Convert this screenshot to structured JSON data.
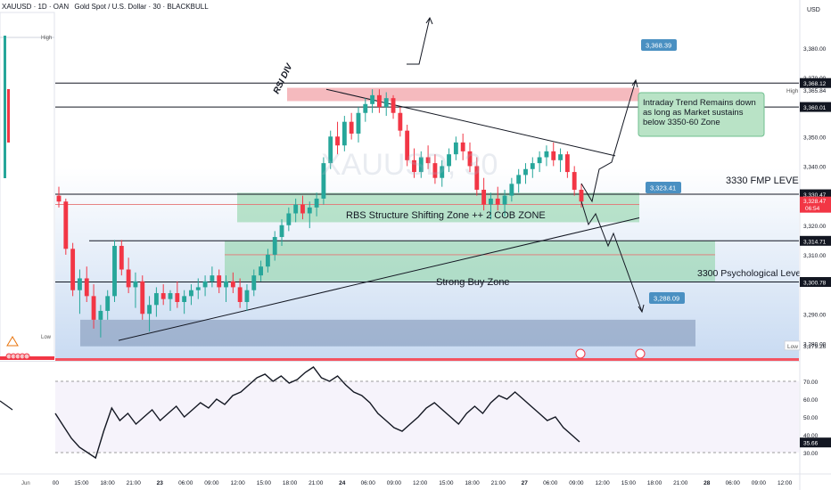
{
  "header": {
    "symbol": "XAUUSD · 1D · OAN",
    "title": "Gold Spot / U.S. Dollar · 30 · BLACKBULL",
    "currency": "USD"
  },
  "left_panel": {
    "high_label": "High",
    "low_label": "Low",
    "bottom_label": "Jun"
  },
  "annotations": {
    "rsi_div": "RSI DIV",
    "rbs_zone": "RBS Structure Shifting Zone ++ 2 COB ZONE",
    "strong_buy": "Strong Buy Zone",
    "fmp_level": "3330 FMP LEVEL",
    "psych_level": "3300 Psychological Level",
    "trend_note": "Intraday Trend Remains down as long as Market sustains below 3350-60 Zone",
    "watermark": "XAUUSD, 30"
  },
  "price_callouts": [
    {
      "label": "3,368.39",
      "value": 3368.39
    },
    {
      "label": "3,323.41",
      "value": 3323.41
    },
    {
      "label": "3,288.09",
      "value": 3288.09
    }
  ],
  "horizontal_levels": [
    {
      "label": "3,368.12",
      "value": 3368.12
    },
    {
      "label": "3,360.01",
      "value": 3360.01
    },
    {
      "label": "3,330.47",
      "value": 3330.47
    },
    {
      "label": "3,314.71",
      "value": 3314.71
    },
    {
      "label": "3,300.78",
      "value": 3300.78
    }
  ],
  "axis_badges": [
    {
      "label": "3,368.12",
      "value": 3368.12,
      "bg": "#131722"
    },
    {
      "label": "3,360.01",
      "value": 3360.01,
      "bg": "#131722"
    },
    {
      "label": "3,330.47",
      "value": 3330.47,
      "bg": "#131722"
    },
    {
      "label": "3,314.71",
      "value": 3314.71,
      "bg": "#131722"
    },
    {
      "label": "3,300.78",
      "value": 3300.78,
      "bg": "#131722"
    }
  ],
  "current_price": {
    "label": "3,328.47",
    "value": 3328.47,
    "countdown": "06:54",
    "color": "#f23645"
  },
  "high_marker": {
    "label": "3,365.84",
    "value": 3365.84,
    "tag": "High"
  },
  "low_marker": {
    "label": "3,279.26",
    "value": 3279.26,
    "tag": "Low"
  },
  "rsi_badge": {
    "label": "35.66",
    "value": 35.66
  },
  "colors": {
    "bull": "#26a69a",
    "bear": "#f23645",
    "accent": "#4a90c2",
    "zone_green": "#8fd3a9",
    "zone_red": "#f2a3a8",
    "zone_blue": "#7a8fb3"
  },
  "chart_data": [
    {
      "type": "candlestick",
      "title": "Gold Spot / U.S. Dollar · 30 · BLACKBULL",
      "ylim": [
        3275,
        3392
      ],
      "y_ticks": [
        3380,
        3370,
        3360,
        3350,
        3340,
        3330,
        3320,
        3310,
        3290,
        3280
      ],
      "y_tick_labels": [
        "3,380.00",
        "3,370.00",
        "3,360.00",
        "3,350.00",
        "3,340.00",
        "3,330.00",
        "3,320.00",
        "3,310.00",
        "3,290.00",
        "3,280.00"
      ],
      "x_ticks": [
        "00",
        "15:00",
        "18:00",
        "21:00",
        "23",
        "06:00",
        "09:00",
        "12:00",
        "15:00",
        "18:00",
        "21:00",
        "24",
        "06:00",
        "09:00",
        "12:00",
        "15:00",
        "18:00",
        "21:00",
        "27",
        "06:00",
        "09:00",
        "12:00",
        "15:00",
        "18:00",
        "21:00",
        "28",
        "06:00",
        "09:00",
        "12:00"
      ],
      "candles": [
        [
          3330,
          3333,
          3326,
          3328
        ],
        [
          3328,
          3329,
          3310,
          3312
        ],
        [
          3312,
          3314,
          3296,
          3298
        ],
        [
          3298,
          3305,
          3290,
          3302
        ],
        [
          3302,
          3306,
          3294,
          3296
        ],
        [
          3296,
          3300,
          3285,
          3288
        ],
        [
          3288,
          3293,
          3282,
          3291
        ],
        [
          3291,
          3298,
          3288,
          3296
        ],
        [
          3296,
          3315,
          3294,
          3313
        ],
        [
          3313,
          3315,
          3303,
          3305
        ],
        [
          3305,
          3309,
          3297,
          3299
        ],
        [
          3299,
          3304,
          3292,
          3301
        ],
        [
          3301,
          3303,
          3288,
          3290
        ],
        [
          3290,
          3296,
          3284,
          3293
        ],
        [
          3293,
          3299,
          3289,
          3297
        ],
        [
          3297,
          3300,
          3293,
          3295
        ],
        [
          3295,
          3298,
          3291,
          3297
        ],
        [
          3297,
          3301,
          3292,
          3294
        ],
        [
          3294,
          3298,
          3290,
          3296
        ],
        [
          3296,
          3300,
          3293,
          3298
        ],
        [
          3298,
          3302,
          3295,
          3299
        ],
        [
          3299,
          3303,
          3296,
          3301
        ],
        [
          3301,
          3306,
          3299,
          3303
        ],
        [
          3303,
          3305,
          3297,
          3299
        ],
        [
          3299,
          3303,
          3294,
          3301
        ],
        [
          3301,
          3304,
          3297,
          3299
        ],
        [
          3299,
          3302,
          3292,
          3294
        ],
        [
          3294,
          3300,
          3291,
          3298
        ],
        [
          3298,
          3305,
          3296,
          3303
        ],
        [
          3303,
          3308,
          3301,
          3306
        ],
        [
          3306,
          3312,
          3304,
          3310
        ],
        [
          3310,
          3318,
          3308,
          3316
        ],
        [
          3316,
          3322,
          3313,
          3320
        ],
        [
          3320,
          3326,
          3318,
          3324
        ],
        [
          3324,
          3329,
          3321,
          3327
        ],
        [
          3327,
          3330,
          3322,
          3324
        ],
        [
          3324,
          3328,
          3319,
          3326
        ],
        [
          3326,
          3331,
          3323,
          3329
        ],
        [
          3329,
          3343,
          3327,
          3341
        ],
        [
          3341,
          3352,
          3339,
          3350
        ],
        [
          3350,
          3355,
          3344,
          3347
        ],
        [
          3347,
          3357,
          3345,
          3355
        ],
        [
          3355,
          3358,
          3349,
          3351
        ],
        [
          3351,
          3360,
          3348,
          3358
        ],
        [
          3358,
          3363,
          3355,
          3361
        ],
        [
          3361,
          3366,
          3358,
          3364
        ],
        [
          3364,
          3366,
          3358,
          3360
        ],
        [
          3360,
          3365,
          3357,
          3363
        ],
        [
          3363,
          3364,
          3356,
          3358
        ],
        [
          3358,
          3360,
          3350,
          3352
        ],
        [
          3352,
          3354,
          3340,
          3342
        ],
        [
          3342,
          3346,
          3336,
          3338
        ],
        [
          3338,
          3345,
          3336,
          3343
        ],
        [
          3343,
          3347,
          3339,
          3341
        ],
        [
          3341,
          3344,
          3334,
          3336
        ],
        [
          3336,
          3342,
          3333,
          3340
        ],
        [
          3340,
          3346,
          3338,
          3344
        ],
        [
          3344,
          3350,
          3342,
          3348
        ],
        [
          3348,
          3351,
          3342,
          3345
        ],
        [
          3345,
          3348,
          3338,
          3340
        ],
        [
          3340,
          3343,
          3330,
          3332
        ],
        [
          3332,
          3336,
          3325,
          3327
        ],
        [
          3327,
          3331,
          3322,
          3329
        ],
        [
          3329,
          3333,
          3325,
          3327
        ],
        [
          3327,
          3332,
          3323,
          3330
        ],
        [
          3330,
          3336,
          3328,
          3334
        ],
        [
          3334,
          3339,
          3331,
          3337
        ],
        [
          3337,
          3341,
          3334,
          3339
        ],
        [
          3339,
          3343,
          3336,
          3341
        ],
        [
          3341,
          3345,
          3338,
          3343
        ],
        [
          3343,
          3347,
          3340,
          3345
        ],
        [
          3345,
          3348,
          3340,
          3342
        ],
        [
          3342,
          3346,
          3338,
          3344
        ],
        [
          3344,
          3345,
          3336,
          3338
        ],
        [
          3338,
          3340,
          3330,
          3332
        ],
        [
          3332,
          3334,
          3326,
          3328
        ]
      ],
      "overlays": {
        "rbs_zone": [
          3321,
          3331
        ],
        "strong_buy_zone": [
          3301,
          3314.7
        ],
        "supply_zone": [
          3362,
          3366.5
        ],
        "low_zone": [
          3279,
          3288
        ],
        "trendline_descending": [
          [
            3366,
            3345
          ]
        ],
        "trendline_ascending": [
          [
            3281,
            3322
          ]
        ]
      }
    },
    {
      "type": "line",
      "title": "RSI",
      "ylim": [
        20,
        80
      ],
      "y_ticks": [
        70,
        60,
        50,
        40,
        30
      ],
      "y_tick_labels": [
        "70.00",
        "60.00",
        "50.00",
        "40.00",
        "30.00"
      ],
      "values": [
        52,
        45,
        38,
        33,
        30,
        27,
        42,
        55,
        48,
        52,
        46,
        50,
        54,
        48,
        52,
        56,
        50,
        54,
        58,
        55,
        60,
        57,
        62,
        64,
        68,
        72,
        74,
        70,
        73,
        69,
        71,
        75,
        78,
        72,
        70,
        73,
        68,
        64,
        62,
        58,
        52,
        48,
        44,
        42,
        46,
        50,
        55,
        58,
        54,
        50,
        46,
        52,
        56,
        52,
        58,
        62,
        60,
        64,
        60,
        56,
        52,
        48,
        50,
        44,
        40,
        36
      ]
    }
  ]
}
